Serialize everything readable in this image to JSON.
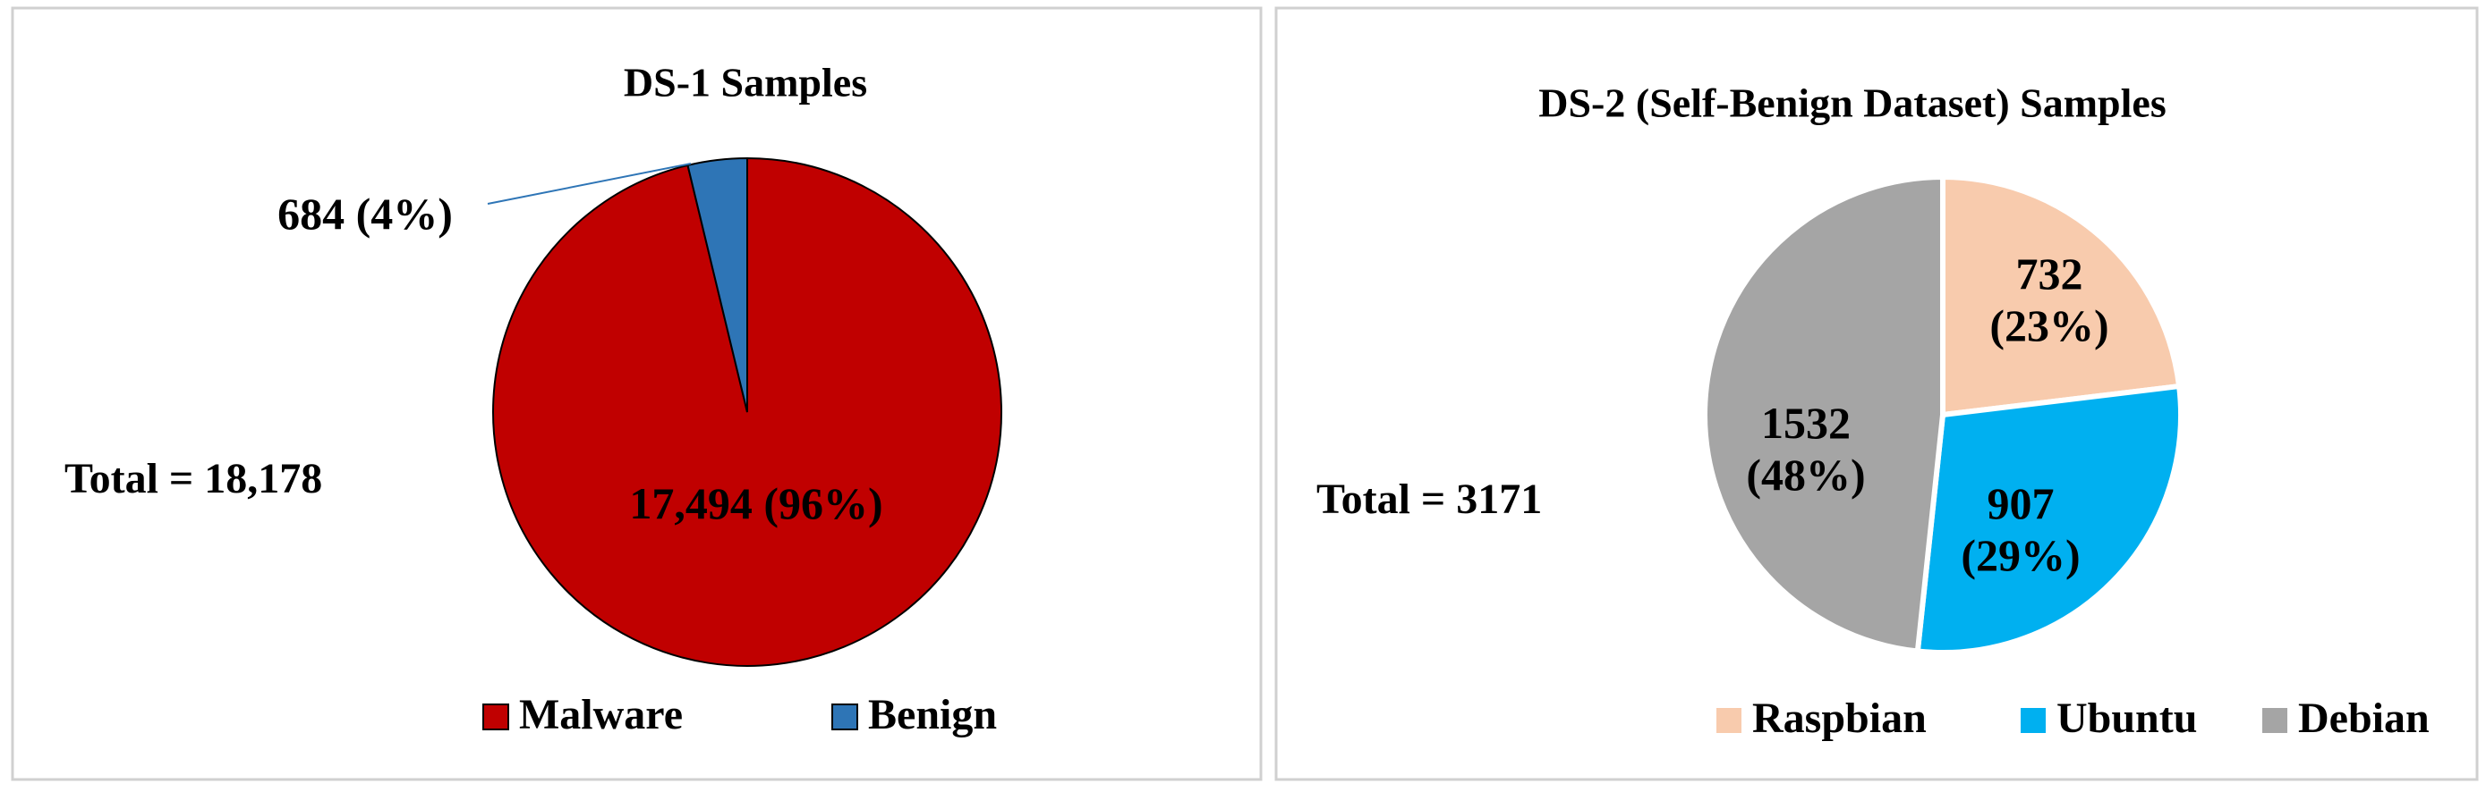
{
  "chart_data": [
    {
      "type": "pie",
      "title": "DS-1 Samples",
      "categories": [
        "Malware",
        "Benign"
      ],
      "values": [
        17494,
        684
      ],
      "value_labels": [
        "17,494 (96%)",
        "684 (4%)"
      ],
      "colors": [
        "#c00000",
        "#2e75b6"
      ],
      "annotation": "Total = 18,178",
      "legend": "bottom"
    },
    {
      "type": "pie",
      "title": "DS-2 (Self-Benign Dataset) Samples",
      "categories": [
        "Raspbian",
        "Ubuntu",
        "Debian"
      ],
      "values": [
        732,
        907,
        1532
      ],
      "value_labels": [
        "732\n(23%)",
        "907\n(29%)",
        "1532\n(48%)"
      ],
      "colors": [
        "#f8cbad",
        "#00b0f0",
        "#a5a5a5"
      ],
      "annotation": "Total = 3171",
      "legend": "bottom"
    }
  ]
}
